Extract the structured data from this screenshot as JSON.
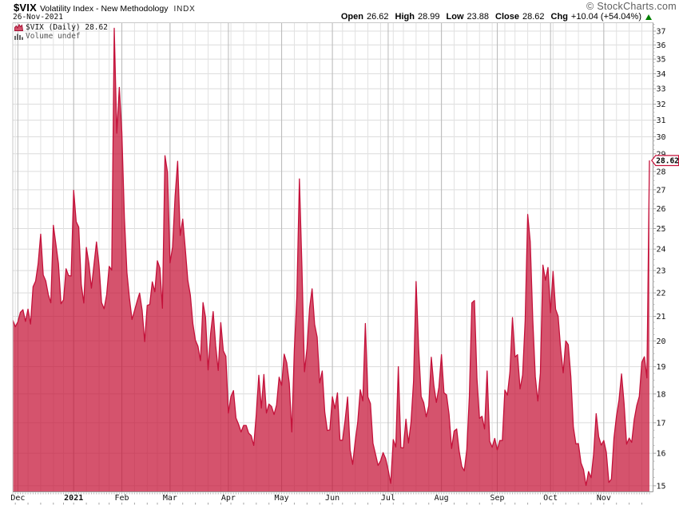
{
  "header": {
    "symbol": "$VIX",
    "title": "Volatility Index - New Methodology",
    "exchange": "INDX",
    "copyright": "© StockCharts.com",
    "date": "26-Nov-2021",
    "quote": {
      "open_label": "Open",
      "open": "26.62",
      "high_label": "High",
      "high": "28.99",
      "low_label": "Low",
      "low": "23.88",
      "close_label": "Close",
      "close": "28.62",
      "chg_label": "Chg",
      "chg": "+10.04 (+54.04%)",
      "direction": "up"
    }
  },
  "legend": {
    "line1": "$VIX (Daily) 28.62",
    "line2": "Volume undef"
  },
  "last_value_label": "28.62",
  "colors": {
    "line": "#c4113a",
    "fill": "rgba(196,13,50,0.71)",
    "grid": "#dcdcdc",
    "week_grid": "#e2e2e2",
    "month_grid": "#b9b9b9",
    "border_light": "#c8c8c8",
    "axis": "#949494",
    "tick": "#a0a0a0",
    "label": "#111111",
    "up_arrow": "#008000",
    "legend_volume": "#555555"
  },
  "chart_data": {
    "type": "area",
    "title": "$VIX Daily close, 27-Nov-2020 to 26-Nov-2021",
    "yscale": "log",
    "ylim": [
      14.82,
      37.62
    ],
    "y_ticks": [
      15,
      16,
      17,
      18,
      19,
      20,
      21,
      22,
      23,
      24,
      25,
      26,
      27,
      28,
      29,
      30,
      31,
      32,
      33,
      34,
      35,
      36,
      37
    ],
    "y_minor_step": 0.25,
    "x_month_ticks": [
      {
        "date": "2020-12-01",
        "label": "Dec",
        "bold": false
      },
      {
        "date": "2021-01-04",
        "label": "2021",
        "bold": true
      },
      {
        "date": "2021-02-01",
        "label": "Feb",
        "bold": false
      },
      {
        "date": "2021-03-01",
        "label": "Mar",
        "bold": false
      },
      {
        "date": "2021-04-01",
        "label": "Apr",
        "bold": false
      },
      {
        "date": "2021-05-03",
        "label": "May",
        "bold": false
      },
      {
        "date": "2021-06-01",
        "label": "Jun",
        "bold": false
      },
      {
        "date": "2021-07-01",
        "label": "Jul",
        "bold": false
      },
      {
        "date": "2021-08-02",
        "label": "Aug",
        "bold": false
      },
      {
        "date": "2021-09-01",
        "label": "Sep",
        "bold": false
      },
      {
        "date": "2021-10-01",
        "label": "Oct",
        "bold": false
      },
      {
        "date": "2021-11-01",
        "label": "Nov",
        "bold": false
      }
    ],
    "dates": [
      "2020-11-27",
      "2020-11-30",
      "2020-12-01",
      "2020-12-02",
      "2020-12-03",
      "2020-12-04",
      "2020-12-07",
      "2020-12-08",
      "2020-12-09",
      "2020-12-10",
      "2020-12-11",
      "2020-12-14",
      "2020-12-15",
      "2020-12-16",
      "2020-12-17",
      "2020-12-18",
      "2020-12-21",
      "2020-12-22",
      "2020-12-23",
      "2020-12-24",
      "2020-12-28",
      "2020-12-29",
      "2020-12-30",
      "2020-12-31",
      "2021-01-04",
      "2021-01-05",
      "2021-01-06",
      "2021-01-07",
      "2021-01-08",
      "2021-01-11",
      "2021-01-12",
      "2021-01-13",
      "2021-01-14",
      "2021-01-15",
      "2021-01-19",
      "2021-01-20",
      "2021-01-21",
      "2021-01-22",
      "2021-01-25",
      "2021-01-26",
      "2021-01-27",
      "2021-01-28",
      "2021-01-29",
      "2021-02-01",
      "2021-02-02",
      "2021-02-03",
      "2021-02-04",
      "2021-02-05",
      "2021-02-08",
      "2021-02-09",
      "2021-02-10",
      "2021-02-11",
      "2021-02-12",
      "2021-02-16",
      "2021-02-17",
      "2021-02-18",
      "2021-02-19",
      "2021-02-22",
      "2021-02-23",
      "2021-02-24",
      "2021-02-25",
      "2021-02-26",
      "2021-03-01",
      "2021-03-02",
      "2021-03-03",
      "2021-03-04",
      "2021-03-05",
      "2021-03-08",
      "2021-03-09",
      "2021-03-10",
      "2021-03-11",
      "2021-03-12",
      "2021-03-15",
      "2021-03-16",
      "2021-03-17",
      "2021-03-18",
      "2021-03-19",
      "2021-03-22",
      "2021-03-23",
      "2021-03-24",
      "2021-03-25",
      "2021-03-26",
      "2021-03-29",
      "2021-03-30",
      "2021-03-31",
      "2021-04-01",
      "2021-04-05",
      "2021-04-06",
      "2021-04-07",
      "2021-04-08",
      "2021-04-09",
      "2021-04-12",
      "2021-04-13",
      "2021-04-14",
      "2021-04-15",
      "2021-04-16",
      "2021-04-19",
      "2021-04-20",
      "2021-04-21",
      "2021-04-22",
      "2021-04-23",
      "2021-04-26",
      "2021-04-27",
      "2021-04-28",
      "2021-04-29",
      "2021-04-30",
      "2021-05-03",
      "2021-05-04",
      "2021-05-05",
      "2021-05-06",
      "2021-05-07",
      "2021-05-10",
      "2021-05-11",
      "2021-05-12",
      "2021-05-13",
      "2021-05-14",
      "2021-05-17",
      "2021-05-18",
      "2021-05-19",
      "2021-05-20",
      "2021-05-21",
      "2021-05-24",
      "2021-05-25",
      "2021-05-26",
      "2021-05-27",
      "2021-05-28",
      "2021-06-01",
      "2021-06-02",
      "2021-06-03",
      "2021-06-04",
      "2021-06-07",
      "2021-06-08",
      "2021-06-09",
      "2021-06-10",
      "2021-06-11",
      "2021-06-14",
      "2021-06-15",
      "2021-06-16",
      "2021-06-17",
      "2021-06-18",
      "2021-06-21",
      "2021-06-22",
      "2021-06-23",
      "2021-06-24",
      "2021-06-25",
      "2021-06-28",
      "2021-06-29",
      "2021-06-30",
      "2021-07-01",
      "2021-07-02",
      "2021-07-06",
      "2021-07-07",
      "2021-07-08",
      "2021-07-09",
      "2021-07-12",
      "2021-07-13",
      "2021-07-14",
      "2021-07-15",
      "2021-07-16",
      "2021-07-19",
      "2021-07-20",
      "2021-07-21",
      "2021-07-22",
      "2021-07-23",
      "2021-07-26",
      "2021-07-27",
      "2021-07-28",
      "2021-07-29",
      "2021-07-30",
      "2021-08-02",
      "2021-08-03",
      "2021-08-04",
      "2021-08-05",
      "2021-08-06",
      "2021-08-09",
      "2021-08-10",
      "2021-08-11",
      "2021-08-12",
      "2021-08-13",
      "2021-08-16",
      "2021-08-17",
      "2021-08-18",
      "2021-08-19",
      "2021-08-20",
      "2021-08-23",
      "2021-08-24",
      "2021-08-25",
      "2021-08-26",
      "2021-08-27",
      "2021-08-30",
      "2021-08-31",
      "2021-09-01",
      "2021-09-02",
      "2021-09-03",
      "2021-09-07",
      "2021-09-08",
      "2021-09-09",
      "2021-09-10",
      "2021-09-13",
      "2021-09-14",
      "2021-09-15",
      "2021-09-16",
      "2021-09-17",
      "2021-09-20",
      "2021-09-21",
      "2021-09-22",
      "2021-09-23",
      "2021-09-24",
      "2021-09-27",
      "2021-09-28",
      "2021-09-29",
      "2021-09-30",
      "2021-10-01",
      "2021-10-04",
      "2021-10-05",
      "2021-10-06",
      "2021-10-07",
      "2021-10-08",
      "2021-10-11",
      "2021-10-12",
      "2021-10-13",
      "2021-10-14",
      "2021-10-15",
      "2021-10-18",
      "2021-10-19",
      "2021-10-20",
      "2021-10-21",
      "2021-10-22",
      "2021-10-25",
      "2021-10-26",
      "2021-10-27",
      "2021-10-28",
      "2021-10-29",
      "2021-11-01",
      "2021-11-02",
      "2021-11-03",
      "2021-11-04",
      "2021-11-05",
      "2021-11-08",
      "2021-11-09",
      "2021-11-10",
      "2021-11-11",
      "2021-11-12",
      "2021-11-15",
      "2021-11-16",
      "2021-11-17",
      "2021-11-18",
      "2021-11-19",
      "2021-11-22",
      "2021-11-23",
      "2021-11-24",
      "2021-11-26"
    ],
    "values": [
      20.84,
      20.57,
      20.77,
      21.17,
      21.28,
      20.79,
      21.3,
      20.68,
      22.27,
      22.52,
      23.31,
      24.72,
      22.8,
      22.53,
      21.93,
      21.57,
      25.16,
      24.23,
      23.31,
      21.53,
      21.7,
      23.08,
      22.77,
      22.75,
      26.97,
      25.34,
      25.07,
      22.37,
      21.56,
      24.08,
      23.33,
      22.21,
      23.25,
      24.34,
      23.24,
      21.58,
      21.32,
      21.91,
      23.19,
      23.02,
      37.21,
      30.21,
      33.09,
      30.24,
      25.56,
      22.91,
      21.77,
      20.87,
      21.24,
      21.63,
      21.99,
      21.25,
      19.97,
      21.46,
      21.5,
      22.49,
      22.05,
      23.45,
      23.11,
      21.34,
      28.89,
      27.95,
      23.35,
      24.1,
      26.67,
      28.57,
      24.66,
      25.47,
      24.03,
      22.56,
      21.91,
      20.69,
      20.03,
      19.79,
      19.23,
      21.58,
      20.95,
      18.88,
      20.3,
      21.2,
      19.81,
      18.86,
      20.74,
      19.61,
      19.4,
      17.33,
      17.91,
      18.12,
      17.16,
      16.95,
      16.69,
      16.91,
      16.91,
      16.65,
      16.57,
      16.25,
      17.29,
      18.68,
      17.5,
      18.71,
      17.33,
      17.64,
      17.56,
      17.28,
      17.61,
      18.61,
      18.31,
      19.48,
      19.15,
      18.39,
      16.69,
      19.66,
      21.84,
      27.59,
      23.13,
      18.81,
      19.72,
      21.34,
      22.18,
      20.67,
      20.15,
      18.4,
      18.84,
      17.36,
      16.74,
      16.76,
      17.9,
      17.48,
      18.04,
      16.42,
      16.42,
      17.07,
      17.89,
      16.1,
      15.65,
      16.39,
      17.02,
      18.15,
      17.75,
      20.7,
      17.89,
      17.66,
      16.32,
      15.97,
      15.62,
      15.76,
      16.02,
      15.83,
      15.48,
      15.07,
      16.44,
      16.2,
      19.0,
      16.18,
      16.17,
      17.12,
      16.33,
      17.01,
      18.45,
      22.5,
      19.73,
      17.91,
      17.69,
      17.2,
      17.58,
      19.36,
      18.31,
      17.7,
      18.24,
      19.46,
      18.04,
      17.97,
      17.28,
      16.15,
      16.72,
      16.79,
      16.06,
      15.59,
      15.45,
      16.12,
      17.91,
      21.57,
      21.67,
      18.56,
      17.15,
      17.22,
      16.79,
      18.84,
      16.39,
      16.19,
      16.48,
      16.11,
      16.41,
      16.41,
      18.14,
      17.96,
      18.8,
      20.95,
      19.37,
      19.46,
      18.18,
      18.69,
      20.81,
      25.71,
      24.36,
      20.87,
      18.63,
      17.75,
      18.76,
      23.25,
      22.56,
      23.14,
      21.15,
      22.96,
      21.3,
      21.0,
      19.67,
      18.77,
      20.0,
      19.85,
      18.64,
      16.86,
      16.3,
      16.31,
      15.7,
      15.49,
      15.01,
      15.43,
      15.24,
      15.98,
      17.31,
      16.53,
      16.26,
      16.41,
      16.03,
      15.1,
      15.2,
      16.48,
      17.22,
      17.78,
      18.73,
      17.66,
      16.29,
      16.49,
      16.35,
      17.11,
      17.59,
      17.91,
      19.17,
      19.38,
      18.58,
      28.62
    ],
    "last_value": 28.62,
    "grid": true,
    "legend_position": "top-left"
  }
}
